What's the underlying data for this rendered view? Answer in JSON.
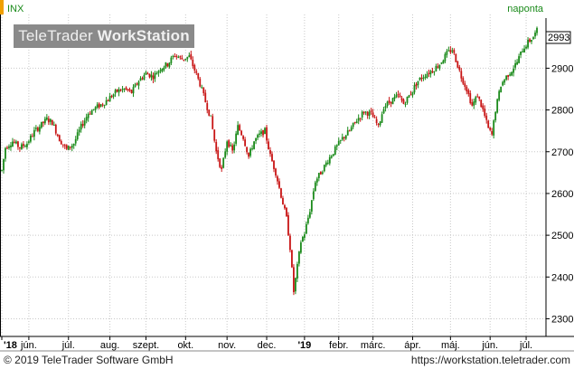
{
  "header": {
    "symbol": "INX",
    "period": "naponta"
  },
  "watermark": {
    "brand_plain": "TeleTrader",
    "brand_bold": "WorkStation"
  },
  "footer": {
    "copyright": "© 2019 TeleTrader Software GmbH",
    "url": "https://workstation.teletrader.com"
  },
  "colors": {
    "up": "#1a8a1a",
    "down": "#c81414",
    "grid": "#c8c8c8",
    "accent": "#f0a000"
  },
  "chart_data": {
    "type": "candlestick",
    "title": "INX",
    "period_label": "naponta",
    "last_price": "2993",
    "y_ticks": [
      "2300",
      "2400",
      "2500",
      "2600",
      "2700",
      "2800",
      "2900"
    ],
    "ylim": [
      2262,
      3020
    ],
    "x_ticks": [
      "'18",
      "jún.",
      "júl.",
      "aug.",
      "szept.",
      "okt.",
      "nov.",
      "dec.",
      "'19",
      "febr.",
      "márc.",
      "ápr.",
      "máj.",
      "jún.",
      "júl."
    ],
    "x_tick_positions": [
      0,
      15,
      37,
      60,
      80,
      102,
      125,
      147,
      168,
      187,
      206,
      228,
      249,
      271,
      291
    ],
    "x_range": [
      0,
      300
    ],
    "grid": true,
    "anchors": [
      [
        0,
        2655
      ],
      [
        2,
        2710
      ],
      [
        6,
        2725
      ],
      [
        10,
        2710
      ],
      [
        14,
        2720
      ],
      [
        18,
        2748
      ],
      [
        22,
        2765
      ],
      [
        25,
        2778
      ],
      [
        28,
        2770
      ],
      [
        32,
        2730
      ],
      [
        36,
        2705
      ],
      [
        40,
        2720
      ],
      [
        44,
        2760
      ],
      [
        48,
        2792
      ],
      [
        52,
        2805
      ],
      [
        56,
        2815
      ],
      [
        60,
        2830
      ],
      [
        64,
        2845
      ],
      [
        68,
        2850
      ],
      [
        72,
        2842
      ],
      [
        76,
        2870
      ],
      [
        80,
        2888
      ],
      [
        84,
        2880
      ],
      [
        88,
        2900
      ],
      [
        92,
        2910
      ],
      [
        96,
        2932
      ],
      [
        100,
        2922
      ],
      [
        104,
        2928
      ],
      [
        107,
        2896
      ],
      [
        110,
        2862
      ],
      [
        113,
        2820
      ],
      [
        116,
        2780
      ],
      [
        119,
        2700
      ],
      [
        122,
        2655
      ],
      [
        125,
        2728
      ],
      [
        128,
        2700
      ],
      [
        131,
        2760
      ],
      [
        134,
        2735
      ],
      [
        137,
        2688
      ],
      [
        140,
        2725
      ],
      [
        143,
        2740
      ],
      [
        146,
        2750
      ],
      [
        149,
        2690
      ],
      [
        152,
        2650
      ],
      [
        155,
        2595
      ],
      [
        158,
        2540
      ],
      [
        160,
        2470
      ],
      [
        162,
        2365
      ],
      [
        164,
        2425
      ],
      [
        166,
        2485
      ],
      [
        168,
        2505
      ],
      [
        171,
        2560
      ],
      [
        174,
        2630
      ],
      [
        177,
        2650
      ],
      [
        181,
        2680
      ],
      [
        185,
        2706
      ],
      [
        189,
        2732
      ],
      [
        193,
        2750
      ],
      [
        197,
        2776
      ],
      [
        201,
        2796
      ],
      [
        205,
        2790
      ],
      [
        209,
        2760
      ],
      [
        212,
        2808
      ],
      [
        216,
        2822
      ],
      [
        220,
        2834
      ],
      [
        223,
        2815
      ],
      [
        227,
        2840
      ],
      [
        231,
        2870
      ],
      [
        235,
        2885
      ],
      [
        239,
        2895
      ],
      [
        243,
        2910
      ],
      [
        247,
        2935
      ],
      [
        250,
        2945
      ],
      [
        252,
        2920
      ],
      [
        255,
        2880
      ],
      [
        258,
        2850
      ],
      [
        261,
        2810
      ],
      [
        264,
        2835
      ],
      [
        267,
        2800
      ],
      [
        270,
        2755
      ],
      [
        272,
        2740
      ],
      [
        274,
        2800
      ],
      [
        277,
        2860
      ],
      [
        280,
        2880
      ],
      [
        283,
        2895
      ],
      [
        286,
        2915
      ],
      [
        289,
        2945
      ],
      [
        292,
        2962
      ],
      [
        295,
        2975
      ],
      [
        297,
        2990
      ]
    ]
  }
}
